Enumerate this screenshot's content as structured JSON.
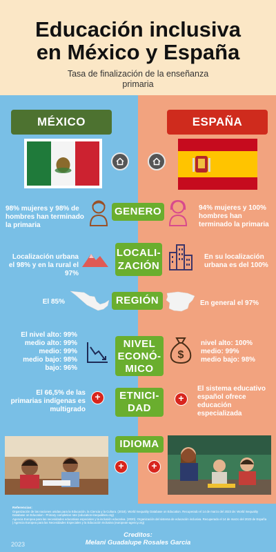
{
  "title": {
    "line1": "Educación inclusiva",
    "line2": "en México y España"
  },
  "subtitle": "Tasa de finalización de la enseñanza primaria",
  "countries": {
    "left": "MÉXICO",
    "right": "ESPAÑA"
  },
  "categories": {
    "genero": "GENERO",
    "localizacion_1": "LOCALI-",
    "localizacion_2": "ZACIÓN",
    "region": "REGIÓN",
    "nivel_1": "NIVEL",
    "nivel_2": "ECONÓ-",
    "nivel_3": "MICO",
    "etnicidad_1": "ETNICI-",
    "etnicidad_2": "DAD",
    "idioma": "IDIOMA"
  },
  "mexico": {
    "genero": "98% mujeres y 98% de hombres han terminado la primaria",
    "localizacion": "Localización urbana el 98% y en la rural el 97%",
    "region": "El 85%",
    "nivel_1": "El nivel alto: 99%",
    "nivel_2": "medio alto: 99%",
    "nivel_3": "medio: 99%",
    "nivel_4": "medio bajo: 98%",
    "nivel_5": "bajo: 96%",
    "etnicidad": "El 66,5% de las primarias indígenas es multigrado"
  },
  "espana": {
    "genero": "94% mujeres y 100% hombres han terminado la primaria",
    "localizacion": "En su localización urbana es del 100%",
    "region": "En general el 97%",
    "nivel_1": "nivel alto: 100%",
    "nivel_2": "medio: 99%",
    "nivel_3": "medio bajo: 98%",
    "etnicidad": "El sistema educativo español ofrece educación especializada"
  },
  "plus_symbol": "+",
  "footer": {
    "refs_title": "Referencias:",
    "ref1": "Organización de las naciones unidas para la Educación, la Ciencia y la Cultura. (2018). World Inequality Database on Education. Recuperado el 14 de marzo del 2023 de: World Inequality Database on Education - Primary completion rate (education-inequalities.org)",
    "ref2": "Agencia Europea para las necesidades educativas especiales y la inclusión educativa. (2020). Organización del sistema de educación inclusiva. Recuperado el 14 de marzo del 2023 de España | Agencia Europea para las Necesidades Especiales y la Educación Inclusiva (european-agency.org)",
    "credits_label": "Creditos:",
    "credits_name": "Melani Guadalupe Rosales Garcia",
    "year": "2023"
  },
  "colors": {
    "left_bg": "#79bfe6",
    "right_bg": "#f2a37f",
    "header_bg": "#fbe7c6",
    "category_green": "#6aae2e",
    "mexico_button": "#4d7230",
    "spain_button": "#cf2b1d",
    "plus_red": "#d8251d"
  },
  "icons": [
    "home-icon",
    "person-male-icon",
    "person-female-icon",
    "mountain-icon",
    "city-buildings-icon",
    "mexico-map-icon",
    "spain-map-icon",
    "decreasing-chart-icon",
    "money-bag-icon",
    "plus-icon"
  ]
}
